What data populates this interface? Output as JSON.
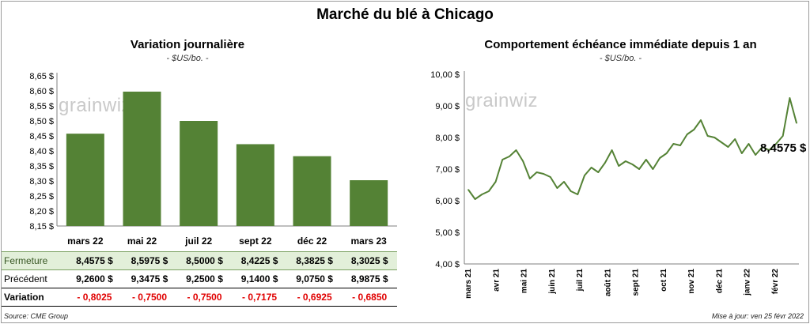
{
  "title": "Marché du blé à Chicago",
  "watermark": "grainwiz",
  "left": {
    "subtitle": "Variation journalière",
    "unit": "- $US/bo. -",
    "table": {
      "rows": [
        {
          "label": "Fermeture",
          "values": [
            "8,4575  $",
            "8,5975  $",
            "8,5000  $",
            "8,4225  $",
            "8,3825  $",
            "8,3025  $"
          ]
        },
        {
          "label": "Précédent",
          "values": [
            "9,2600  $",
            "9,3475  $",
            "9,2500  $",
            "9,1400  $",
            "9,0750  $",
            "8,9875  $"
          ]
        },
        {
          "label": "Variation",
          "values": [
            "- 0,8025",
            "- 0,7500",
            "- 0,7500",
            "- 0,7175",
            "- 0,6925",
            "- 0,6850"
          ]
        }
      ]
    }
  },
  "right": {
    "subtitle": "Comportement  échéance immédiate depuis 1 an",
    "unit": "- $US/bo. -",
    "last_label": "8,4575 $"
  },
  "footer": {
    "source": "Source: CME Group",
    "updated": "Mise à jour: ven 25 févr 2022"
  },
  "chart_data": [
    {
      "type": "bar",
      "categories": [
        "mars 22",
        "mai 22",
        "juil 22",
        "sept 22",
        "déc 22",
        "mars 23"
      ],
      "values": [
        8.4575,
        8.5975,
        8.5,
        8.4225,
        8.3825,
        8.3025
      ],
      "ylim": [
        8.15,
        8.65
      ],
      "yticks": [
        "8,15 $",
        "8,20 $",
        "8,25 $",
        "8,30 $",
        "8,35 $",
        "8,40 $",
        "8,45 $",
        "8,50 $",
        "8,55 $",
        "8,60 $",
        "8,65 $"
      ],
      "color": "#548235",
      "grid": false
    },
    {
      "type": "line",
      "ylim": [
        4.0,
        10.0
      ],
      "yticks": [
        "4,00 $",
        "5,00 $",
        "6,00 $",
        "7,00 $",
        "8,00 $",
        "9,00 $",
        "10,00 $"
      ],
      "xticks": [
        "mars 21",
        "avr 21",
        "mai 21",
        "juin 21",
        "juil 21",
        "août 21",
        "sept 21",
        "oct 21",
        "nov 21",
        "déc 21",
        "janv 22",
        "févr 22"
      ],
      "color": "#548235",
      "grid": false,
      "x": [
        "mars 21",
        "mars 21",
        "mars 21",
        "mars 21",
        "avr 21",
        "avr 21",
        "avr 21",
        "avr 21",
        "avr 21",
        "mai 21",
        "mai 21",
        "mai 21",
        "mai 21",
        "juin 21",
        "juin 21",
        "juin 21",
        "juin 21",
        "juil 21",
        "juil 21",
        "juil 21",
        "juil 21",
        "août 21",
        "août 21",
        "août 21",
        "août 21",
        "sept 21",
        "sept 21",
        "sept 21",
        "sept 21",
        "oct 21",
        "oct 21",
        "oct 21",
        "oct 21",
        "nov 21",
        "nov 21",
        "nov 21",
        "nov 21",
        "déc 21",
        "déc 21",
        "déc 21",
        "déc 21",
        "janv 22",
        "janv 22",
        "janv 22",
        "janv 22",
        "févr 22",
        "févr 22",
        "févr 22",
        "févr 22"
      ],
      "values": [
        6.35,
        6.05,
        6.2,
        6.3,
        6.6,
        7.3,
        7.4,
        7.6,
        7.25,
        6.7,
        6.9,
        6.85,
        6.75,
        6.4,
        6.6,
        6.3,
        6.2,
        6.8,
        7.05,
        6.9,
        7.2,
        7.6,
        7.1,
        7.25,
        7.15,
        7.0,
        7.3,
        7.0,
        7.35,
        7.5,
        7.8,
        7.75,
        8.1,
        8.25,
        8.55,
        8.05,
        8.0,
        7.85,
        7.7,
        7.95,
        7.5,
        7.8,
        7.45,
        7.7,
        7.6,
        7.8,
        8.05,
        9.25,
        8.4575
      ]
    }
  ]
}
